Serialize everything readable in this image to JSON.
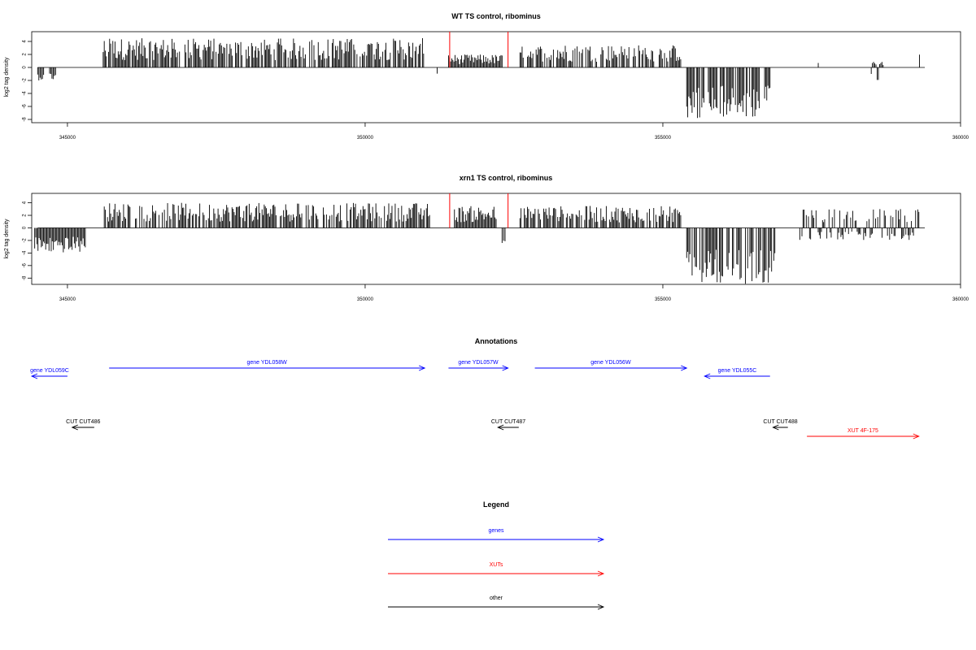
{
  "chart_data": [
    {
      "type": "bar",
      "title": "WT TS control, ribominus",
      "ylabel": "log2 tag density",
      "xlim": [
        344400,
        360000
      ],
      "ylim": [
        -8.5,
        5.5
      ],
      "x_ticks": [
        345000,
        350000,
        355000,
        360000
      ],
      "y_ticks": [
        4,
        2,
        0,
        -2,
        -4,
        -6,
        -8
      ],
      "series": [
        {
          "color": "#000000",
          "segments": [
            {
              "from": 344500,
              "to": 344600,
              "range": [
                -2,
                0
              ]
            },
            {
              "from": 344700,
              "to": 344800,
              "range": [
                -2,
                0
              ]
            },
            {
              "from": 345600,
              "to": 351000,
              "range": [
                0,
                4.5
              ]
            },
            {
              "from": 351200,
              "to": 351220,
              "range": [
                -2,
                0
              ]
            },
            {
              "from": 351400,
              "to": 352300,
              "range": [
                0,
                2
              ]
            },
            {
              "from": 352600,
              "to": 355300,
              "range": [
                0,
                3.5
              ]
            },
            {
              "from": 355400,
              "to": 356800,
              "range": [
                -8,
                0
              ]
            },
            {
              "from": 357600,
              "to": 357620,
              "range": [
                0,
                1
              ]
            },
            {
              "from": 358500,
              "to": 358700,
              "range": [
                -2,
                1
              ]
            },
            {
              "from": 359300,
              "to": 359320,
              "range": [
                0,
                2.5
              ]
            }
          ]
        },
        {
          "color": "#ff0000",
          "points": [
            [
              351420,
              5.5
            ],
            [
              352400,
              5.5
            ]
          ]
        }
      ]
    },
    {
      "type": "bar",
      "title": "xrn1 TS control, ribominus",
      "ylabel": "log2 tag density",
      "xlim": [
        344400,
        360000
      ],
      "ylim": [
        -9,
        5.5
      ],
      "x_ticks": [
        345000,
        350000,
        355000,
        360000
      ],
      "y_ticks": [
        4,
        2,
        0,
        -2,
        -4,
        -6,
        -8
      ],
      "series": [
        {
          "color": "#000000",
          "segments": [
            {
              "from": 344450,
              "to": 345300,
              "range": [
                -4,
                0
              ]
            },
            {
              "from": 345600,
              "to": 351100,
              "range": [
                0,
                4
              ]
            },
            {
              "from": 351500,
              "to": 352200,
              "range": [
                0,
                3.5
              ]
            },
            {
              "from": 352300,
              "to": 352350,
              "range": [
                -2.5,
                0
              ]
            },
            {
              "from": 352600,
              "to": 355300,
              "range": [
                0,
                3.5
              ]
            },
            {
              "from": 355400,
              "to": 356900,
              "range": [
                -9,
                0
              ]
            },
            {
              "from": 357300,
              "to": 359300,
              "range": [
                -2,
                3
              ]
            }
          ]
        },
        {
          "color": "#ff0000",
          "points": [
            [
              351420,
              5.5
            ],
            [
              352400,
              5.5
            ]
          ]
        }
      ]
    }
  ],
  "annotations": {
    "title": "Annotations",
    "features": [
      {
        "label": "gene YDL059C",
        "color": "#0000ff",
        "start": 344400,
        "end": 345000,
        "dir": "left",
        "row": "gene-low"
      },
      {
        "label": "gene YDL058W",
        "color": "#0000ff",
        "start": 345700,
        "end": 351000,
        "dir": "right",
        "row": "gene-high"
      },
      {
        "label": "gene YDL057W",
        "color": "#0000ff",
        "start": 351400,
        "end": 352400,
        "dir": "right",
        "row": "gene-high"
      },
      {
        "label": "gene YDL056W",
        "color": "#0000ff",
        "start": 352850,
        "end": 355400,
        "dir": "right",
        "row": "gene-high"
      },
      {
        "label": "gene YDL055C",
        "color": "#0000ff",
        "start": 355700,
        "end": 356800,
        "dir": "left",
        "row": "gene-low"
      },
      {
        "label": "CUT CUT486",
        "color": "#000000",
        "start": 345080,
        "end": 345450,
        "dir": "left",
        "row": "cut"
      },
      {
        "label": "CUT CUT487",
        "color": "#000000",
        "start": 352230,
        "end": 352580,
        "dir": "left",
        "row": "cut"
      },
      {
        "label": "CUT CUT488",
        "color": "#000000",
        "start": 356850,
        "end": 357100,
        "dir": "left",
        "row": "cut"
      },
      {
        "label": "XUT 4F-175",
        "color": "#ff0000",
        "start": 357420,
        "end": 359300,
        "dir": "right",
        "row": "xut"
      }
    ]
  },
  "legend": {
    "title": "Legend",
    "items": [
      {
        "label": "genes",
        "color": "#0000ff"
      },
      {
        "label": "XUTs",
        "color": "#ff0000"
      },
      {
        "label": "other",
        "color": "#000000"
      }
    ]
  }
}
